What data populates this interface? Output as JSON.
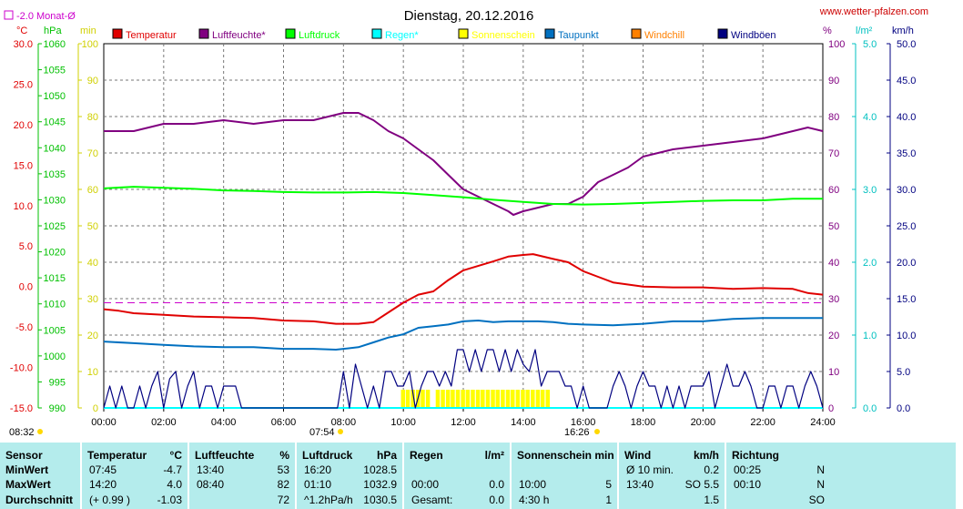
{
  "title": "Dienstag, 20.12.2016",
  "site": "www.wetter-pfalzen.com",
  "monthly_avg_note": "-2.0 Monat-Ø",
  "unit_labels": {
    "celsius": "°C",
    "hpa": "hPa",
    "min": "min",
    "percent": "%",
    "lm2": "l/m²",
    "kmh": "km/h"
  },
  "legend": [
    {
      "label": "Temperatur",
      "color": "#e00000"
    },
    {
      "label": "Luftfeuchte*",
      "color": "#800080"
    },
    {
      "label": "Luftdruck",
      "color": "#00ff00"
    },
    {
      "label": "Regen*",
      "color": "#00ffff"
    },
    {
      "label": "Sonnenschein",
      "color": "#ffff00"
    },
    {
      "label": "Taupunkt",
      "color": "#0070c0"
    },
    {
      "label": "Windchill",
      "color": "#ff8000"
    },
    {
      "label": "Windböen",
      "color": "#000080"
    }
  ],
  "axis_ticks": {
    "temp": [
      "30.0",
      "25.0",
      "20.0",
      "15.0",
      "10.0",
      "5.0",
      "0.0",
      "-5.0",
      "-10.0",
      "-15.0"
    ],
    "hpa": [
      "1060",
      "1055",
      "1050",
      "1045",
      "1040",
      "1035",
      "1030",
      "1025",
      "1020",
      "1015",
      "1010",
      "1005",
      "1000",
      "995",
      "990"
    ],
    "min": [
      "100",
      "90",
      "80",
      "70",
      "60",
      "50",
      "40",
      "30",
      "20",
      "10",
      "0"
    ],
    "pct": [
      "100",
      "90",
      "80",
      "70",
      "60",
      "50",
      "40",
      "30",
      "20",
      "10",
      "0"
    ],
    "rain": [
      "5.0",
      "4.0",
      "3.0",
      "2.0",
      "1.0",
      "0.0"
    ],
    "wind": [
      "50.0",
      "45.0",
      "40.0",
      "35.0",
      "30.0",
      "25.0",
      "20.0",
      "15.0",
      "10.0",
      "5.0",
      "0.0"
    ],
    "x": [
      "00:00",
      "02:00",
      "04:00",
      "06:00",
      "08:00",
      "10:00",
      "12:00",
      "14:00",
      "16:00",
      "18:00",
      "20:00",
      "22:00",
      "24:00"
    ]
  },
  "sun_events": {
    "sunrise": "08:32",
    "solar_noon": "07:54",
    "sunset": "16:26"
  },
  "chart_data": {
    "type": "line",
    "title": "Dienstag, 20.12.2016",
    "x_unit": "hours",
    "xlim": [
      0,
      24
    ],
    "axes": {
      "temp_c": [
        -15,
        30
      ],
      "pressure_hpa": [
        990,
        1060
      ],
      "sunshine_min": [
        0,
        100
      ],
      "humidity_pct": [
        0,
        100
      ],
      "rain_lm2": [
        0,
        5
      ],
      "wind_kmh": [
        0,
        50
      ]
    },
    "reference_line": {
      "name": "-2.0 Monat-Ø",
      "axis": "temp_c",
      "value": -2.0
    },
    "series": [
      {
        "name": "Temperatur",
        "axis": "temp_c",
        "color": "#e00000",
        "x": [
          0,
          0.5,
          1,
          2,
          3,
          4,
          5,
          6,
          7,
          7.75,
          8.5,
          9,
          9.5,
          10,
          10.5,
          11,
          11.5,
          12,
          13,
          13.5,
          14,
          14.33,
          15,
          15.5,
          16,
          16.5,
          17,
          18,
          19,
          20,
          21,
          22,
          23,
          23.5,
          24
        ],
        "y": [
          -2.8,
          -3.0,
          -3.3,
          -3.5,
          -3.7,
          -3.8,
          -3.9,
          -4.2,
          -4.3,
          -4.6,
          -4.6,
          -4.4,
          -3.2,
          -2.0,
          -1.0,
          -0.6,
          0.8,
          2.0,
          3.1,
          3.7,
          3.9,
          4.0,
          3.4,
          3.0,
          1.9,
          1.2,
          0.5,
          0.0,
          -0.1,
          -0.1,
          -0.3,
          -0.2,
          -0.3,
          -0.8,
          -1.0
        ]
      },
      {
        "name": "Luftfeuchte*",
        "axis": "humidity_pct",
        "color": "#800080",
        "x": [
          0,
          1,
          1.5,
          2,
          3,
          4,
          5,
          6,
          7,
          7.5,
          8,
          8.5,
          9,
          9.5,
          10,
          10.5,
          11,
          11.5,
          12,
          12.5,
          13,
          13.5,
          13.67,
          14,
          14.5,
          15,
          15.5,
          16,
          16.5,
          17,
          17.5,
          18,
          19,
          20,
          21,
          22,
          23,
          23.5,
          24
        ],
        "y": [
          76,
          76,
          77,
          78,
          78,
          79,
          78,
          79,
          79,
          80,
          81,
          81,
          79,
          76,
          74,
          71,
          68,
          64,
          60,
          58,
          56,
          54,
          53,
          54,
          55,
          56,
          56,
          58,
          62,
          64,
          66,
          69,
          71,
          72,
          73,
          74,
          76,
          77,
          76
        ]
      },
      {
        "name": "Luftdruck",
        "axis": "pressure_hpa",
        "color": "#00ff00",
        "x": [
          0,
          1,
          2,
          3,
          4,
          5,
          6,
          7,
          8,
          9,
          10,
          11,
          12,
          13,
          14,
          15,
          16,
          17,
          18,
          19,
          20,
          21,
          22,
          23,
          24
        ],
        "y": [
          1032.2,
          1032.5,
          1032.3,
          1032.1,
          1031.8,
          1031.7,
          1031.5,
          1031.4,
          1031.4,
          1031.5,
          1031.3,
          1030.9,
          1030.5,
          1030.0,
          1029.6,
          1029.2,
          1029.1,
          1029.2,
          1029.4,
          1029.6,
          1029.8,
          1029.9,
          1029.9,
          1030.2,
          1030.2
        ]
      },
      {
        "name": "Regen*",
        "axis": "rain_lm2",
        "color": "#00ffff",
        "x": [
          0,
          24
        ],
        "y": [
          0,
          0
        ]
      },
      {
        "name": "Taupunkt",
        "axis": "temp_c",
        "color": "#0070c0",
        "x": [
          0,
          1,
          2,
          3,
          4,
          5,
          6,
          7,
          7.75,
          8.5,
          9,
          9.5,
          10,
          10.5,
          11,
          11.5,
          12,
          12.5,
          13,
          13.5,
          14,
          14.5,
          15,
          15.5,
          16,
          17,
          18,
          19,
          20,
          21,
          22,
          23,
          24
        ],
        "y": [
          -6.8,
          -7.0,
          -7.2,
          -7.4,
          -7.5,
          -7.5,
          -7.7,
          -7.7,
          -7.8,
          -7.5,
          -6.9,
          -6.3,
          -5.9,
          -5.1,
          -4.9,
          -4.7,
          -4.3,
          -4.2,
          -4.4,
          -4.3,
          -4.3,
          -4.3,
          -4.4,
          -4.6,
          -4.7,
          -4.8,
          -4.6,
          -4.3,
          -4.3,
          -4.0,
          -3.9,
          -3.9,
          -3.9
        ]
      },
      {
        "name": "Windböen",
        "axis": "wind_kmh",
        "color": "#000080",
        "x": [
          0,
          0.2,
          0.4,
          0.6,
          0.8,
          1.0,
          1.2,
          1.4,
          1.6,
          1.8,
          2.0,
          2.2,
          2.4,
          2.6,
          2.8,
          3.0,
          3.2,
          3.4,
          3.6,
          3.8,
          4.0,
          4.2,
          4.4,
          4.6,
          4.8,
          5.0,
          5.2,
          5.4,
          5.6,
          5.8,
          6.0,
          6.2,
          6.4,
          6.6,
          6.8,
          7.0,
          7.2,
          7.4,
          7.6,
          7.8,
          8.0,
          8.2,
          8.4,
          8.6,
          8.8,
          9.0,
          9.2,
          9.4,
          9.6,
          9.8,
          10.0,
          10.2,
          10.4,
          10.6,
          10.8,
          11.0,
          11.2,
          11.4,
          11.6,
          11.8,
          12.0,
          12.2,
          12.4,
          12.6,
          12.8,
          13.0,
          13.2,
          13.4,
          13.6,
          13.8,
          14.0,
          14.2,
          14.4,
          14.6,
          14.8,
          15.0,
          15.2,
          15.4,
          15.6,
          15.8,
          16.0,
          16.2,
          16.4,
          16.6,
          16.8,
          17.0,
          17.2,
          17.4,
          17.6,
          17.8,
          18.0,
          18.2,
          18.4,
          18.6,
          18.8,
          19.0,
          19.2,
          19.4,
          19.6,
          19.8,
          20.0,
          20.2,
          20.4,
          20.6,
          20.8,
          21.0,
          21.2,
          21.4,
          21.6,
          21.8,
          22.0,
          22.2,
          22.4,
          22.6,
          22.8,
          23.0,
          23.2,
          23.4,
          23.6,
          23.8,
          24.0
        ],
        "y": [
          0,
          3,
          0,
          3,
          0,
          0,
          3,
          0,
          3,
          5,
          0,
          4,
          5,
          0,
          3,
          5,
          0,
          3,
          3,
          0,
          3,
          3,
          3,
          0,
          0,
          0,
          0,
          0,
          0,
          0,
          0,
          0,
          0,
          0,
          0,
          0,
          0,
          0,
          0,
          0,
          5,
          0,
          6,
          3,
          0,
          3,
          0,
          5,
          5,
          3,
          3,
          5,
          0,
          3,
          5,
          5,
          3,
          5,
          3,
          8,
          8,
          5,
          8,
          5,
          8,
          8,
          5,
          8,
          5,
          8,
          6,
          5,
          8,
          3,
          5,
          5,
          5,
          3,
          3,
          0,
          3,
          0,
          0,
          0,
          0,
          3,
          5,
          3,
          0,
          3,
          5,
          3,
          3,
          0,
          3,
          0,
          3,
          0,
          3,
          3,
          3,
          5,
          0,
          3,
          6,
          3,
          3,
          5,
          3,
          0,
          0,
          3,
          3,
          0,
          3,
          3,
          0,
          3,
          5,
          3,
          0
        ]
      }
    ],
    "sunshine_bars": {
      "name": "Sonnenschein",
      "axis": "sunshine_min",
      "color": "#ffff00",
      "x": [
        9.92,
        10.08,
        10.25,
        10.42,
        10.58,
        10.75,
        10.92,
        11.08,
        11.25,
        11.42,
        11.58,
        11.75,
        11.92,
        12.08,
        12.25,
        12.42,
        12.58,
        12.75,
        12.92,
        13.08,
        13.25,
        13.42,
        13.58,
        13.75,
        13.92,
        14.08,
        14.25,
        14.42,
        14.58,
        14.75
      ],
      "y": [
        5,
        5,
        5,
        5,
        5,
        5,
        0,
        5,
        5,
        5,
        5,
        5,
        5,
        5,
        5,
        5,
        5,
        5,
        5,
        5,
        5,
        5,
        5,
        5,
        5,
        5,
        5,
        5,
        5,
        5
      ]
    }
  },
  "stats_table": {
    "columns": [
      {
        "title": "Sensor",
        "unit": "",
        "rows": [
          [
            "MinWert",
            ""
          ],
          [
            "MaxWert",
            ""
          ],
          [
            "Durchschnitt",
            ""
          ]
        ]
      },
      {
        "title": "Temperatur",
        "unit": "°C",
        "rows": [
          [
            "07:45",
            "-4.7"
          ],
          [
            "14:20",
            "4.0"
          ],
          [
            "(+ 0.99 )",
            "-1.03"
          ]
        ]
      },
      {
        "title": "Luftfeuchte",
        "unit": "%",
        "rows": [
          [
            "13:40",
            "53"
          ],
          [
            "08:40",
            "82"
          ],
          [
            "",
            "72"
          ]
        ]
      },
      {
        "title": "Luftdruck",
        "unit": "hPa",
        "rows": [
          [
            "16:20",
            "1028.5"
          ],
          [
            "01:10",
            "1032.9"
          ],
          [
            "^1.2hPa/h",
            "1030.5"
          ]
        ]
      },
      {
        "title": "Regen",
        "unit": "l/m²",
        "rows": [
          [
            "",
            ""
          ],
          [
            "00:00",
            "0.0"
          ],
          [
            "Gesamt:",
            "0.0"
          ]
        ]
      },
      {
        "title": "Sonnenschein min",
        "unit": "",
        "rows": [
          [
            "",
            ""
          ],
          [
            "10:00",
            "5"
          ],
          [
            "4:30 h",
            "1"
          ]
        ]
      },
      {
        "title": "Wind",
        "unit": "km/h",
        "rows": [
          [
            "Ø 10 min.",
            "0.2"
          ],
          [
            "13:40",
            "SO 5.5"
          ],
          [
            "",
            "1.5"
          ]
        ]
      },
      {
        "title": "Richtung",
        "unit": "",
        "rows": [
          [
            "00:25",
            "N"
          ],
          [
            "00:10",
            "N"
          ],
          [
            "",
            "SO"
          ]
        ]
      }
    ]
  }
}
